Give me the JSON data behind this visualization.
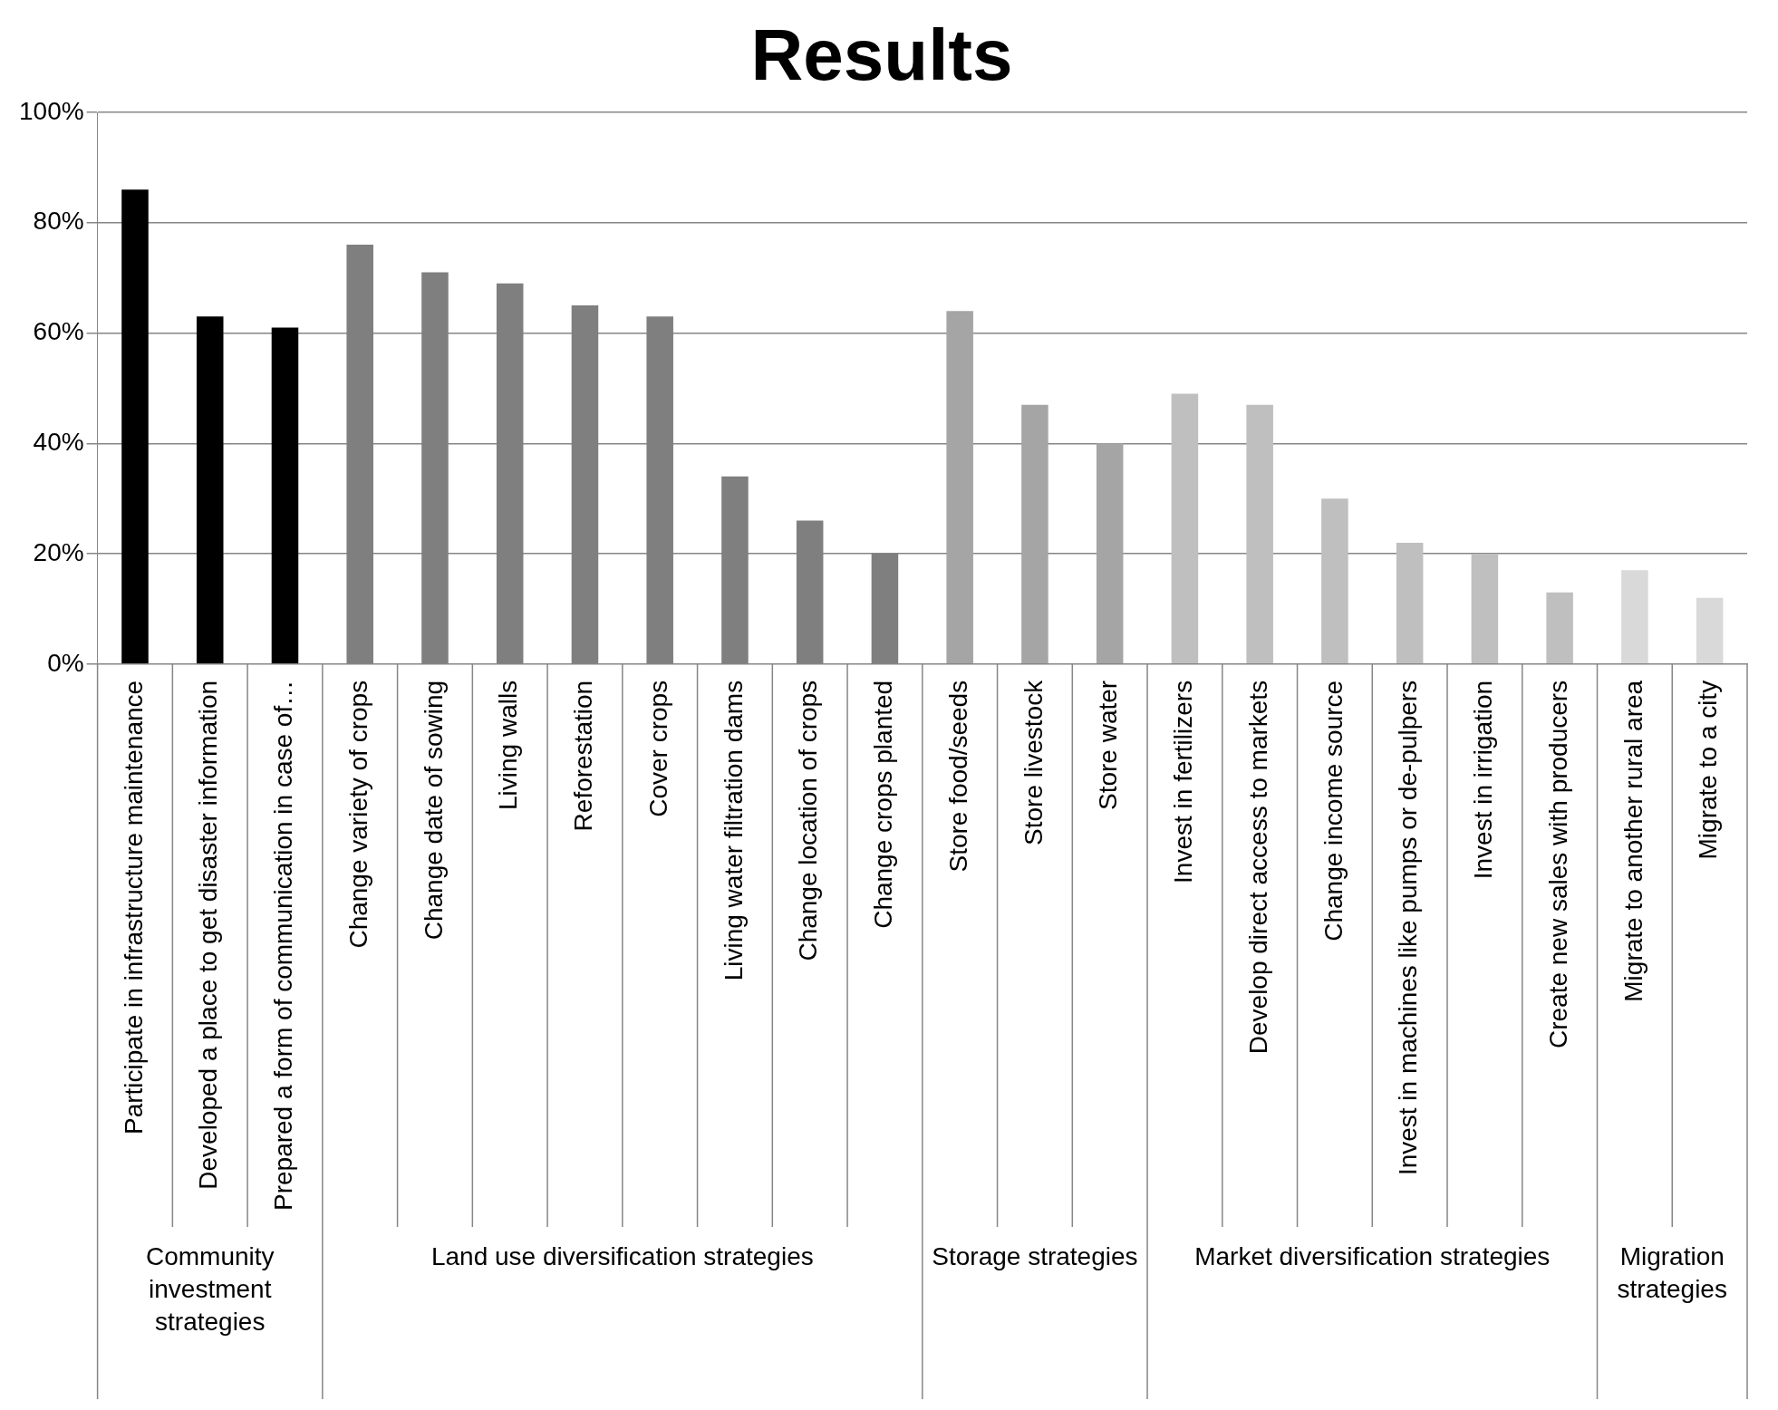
{
  "chart_data": {
    "type": "bar",
    "title": "Results",
    "categories": [
      "Participate in infrastructure maintenance",
      "Developed a place to get disaster information",
      "Prepared a form of communication in case of…",
      "Change variety of crops",
      "Change date of sowing",
      "Living walls",
      "Reforestation",
      "Cover crops",
      "Living water filtration dams",
      "Change location of crops",
      "Change crops planted",
      "Store food/seeds",
      "Store livestock",
      "Store water",
      "Invest in fertilizers",
      "Develop direct access to markets",
      "Change income source",
      "Invest in machines like pumps or de-pulpers",
      "Invest in irrigation",
      "Create new sales with producers",
      "Migrate to another rural area",
      "Migrate to a city"
    ],
    "values": [
      86,
      63,
      61,
      76,
      71,
      69,
      65,
      63,
      34,
      26,
      20,
      64,
      47,
      40,
      49,
      47,
      30,
      22,
      20,
      13,
      17,
      12
    ],
    "colors": [
      "#000000",
      "#000000",
      "#000000",
      "#7f7f7f",
      "#7f7f7f",
      "#7f7f7f",
      "#7f7f7f",
      "#7f7f7f",
      "#7f7f7f",
      "#7f7f7f",
      "#7f7f7f",
      "#a5a5a5",
      "#a5a5a5",
      "#a5a5a5",
      "#bfbfbf",
      "#bfbfbf",
      "#bfbfbf",
      "#bfbfbf",
      "#bfbfbf",
      "#bfbfbf",
      "#d9d9d9",
      "#d9d9d9"
    ],
    "annotations": [
      "Community investment strategies",
      "Land use diversification strategies",
      "Storage strategies",
      "Market diversification strategies",
      "Migration strategies"
    ],
    "ylim": [
      0,
      100
    ],
    "yticks": [
      {
        "value": 0,
        "label": "0%"
      },
      {
        "value": 20,
        "label": "20%"
      },
      {
        "value": 40,
        "label": "40%"
      },
      {
        "value": 60,
        "label": "60%"
      },
      {
        "value": 80,
        "label": "80%"
      },
      {
        "value": 100,
        "label": "100%"
      }
    ],
    "grid": "y",
    "legend": false
  }
}
